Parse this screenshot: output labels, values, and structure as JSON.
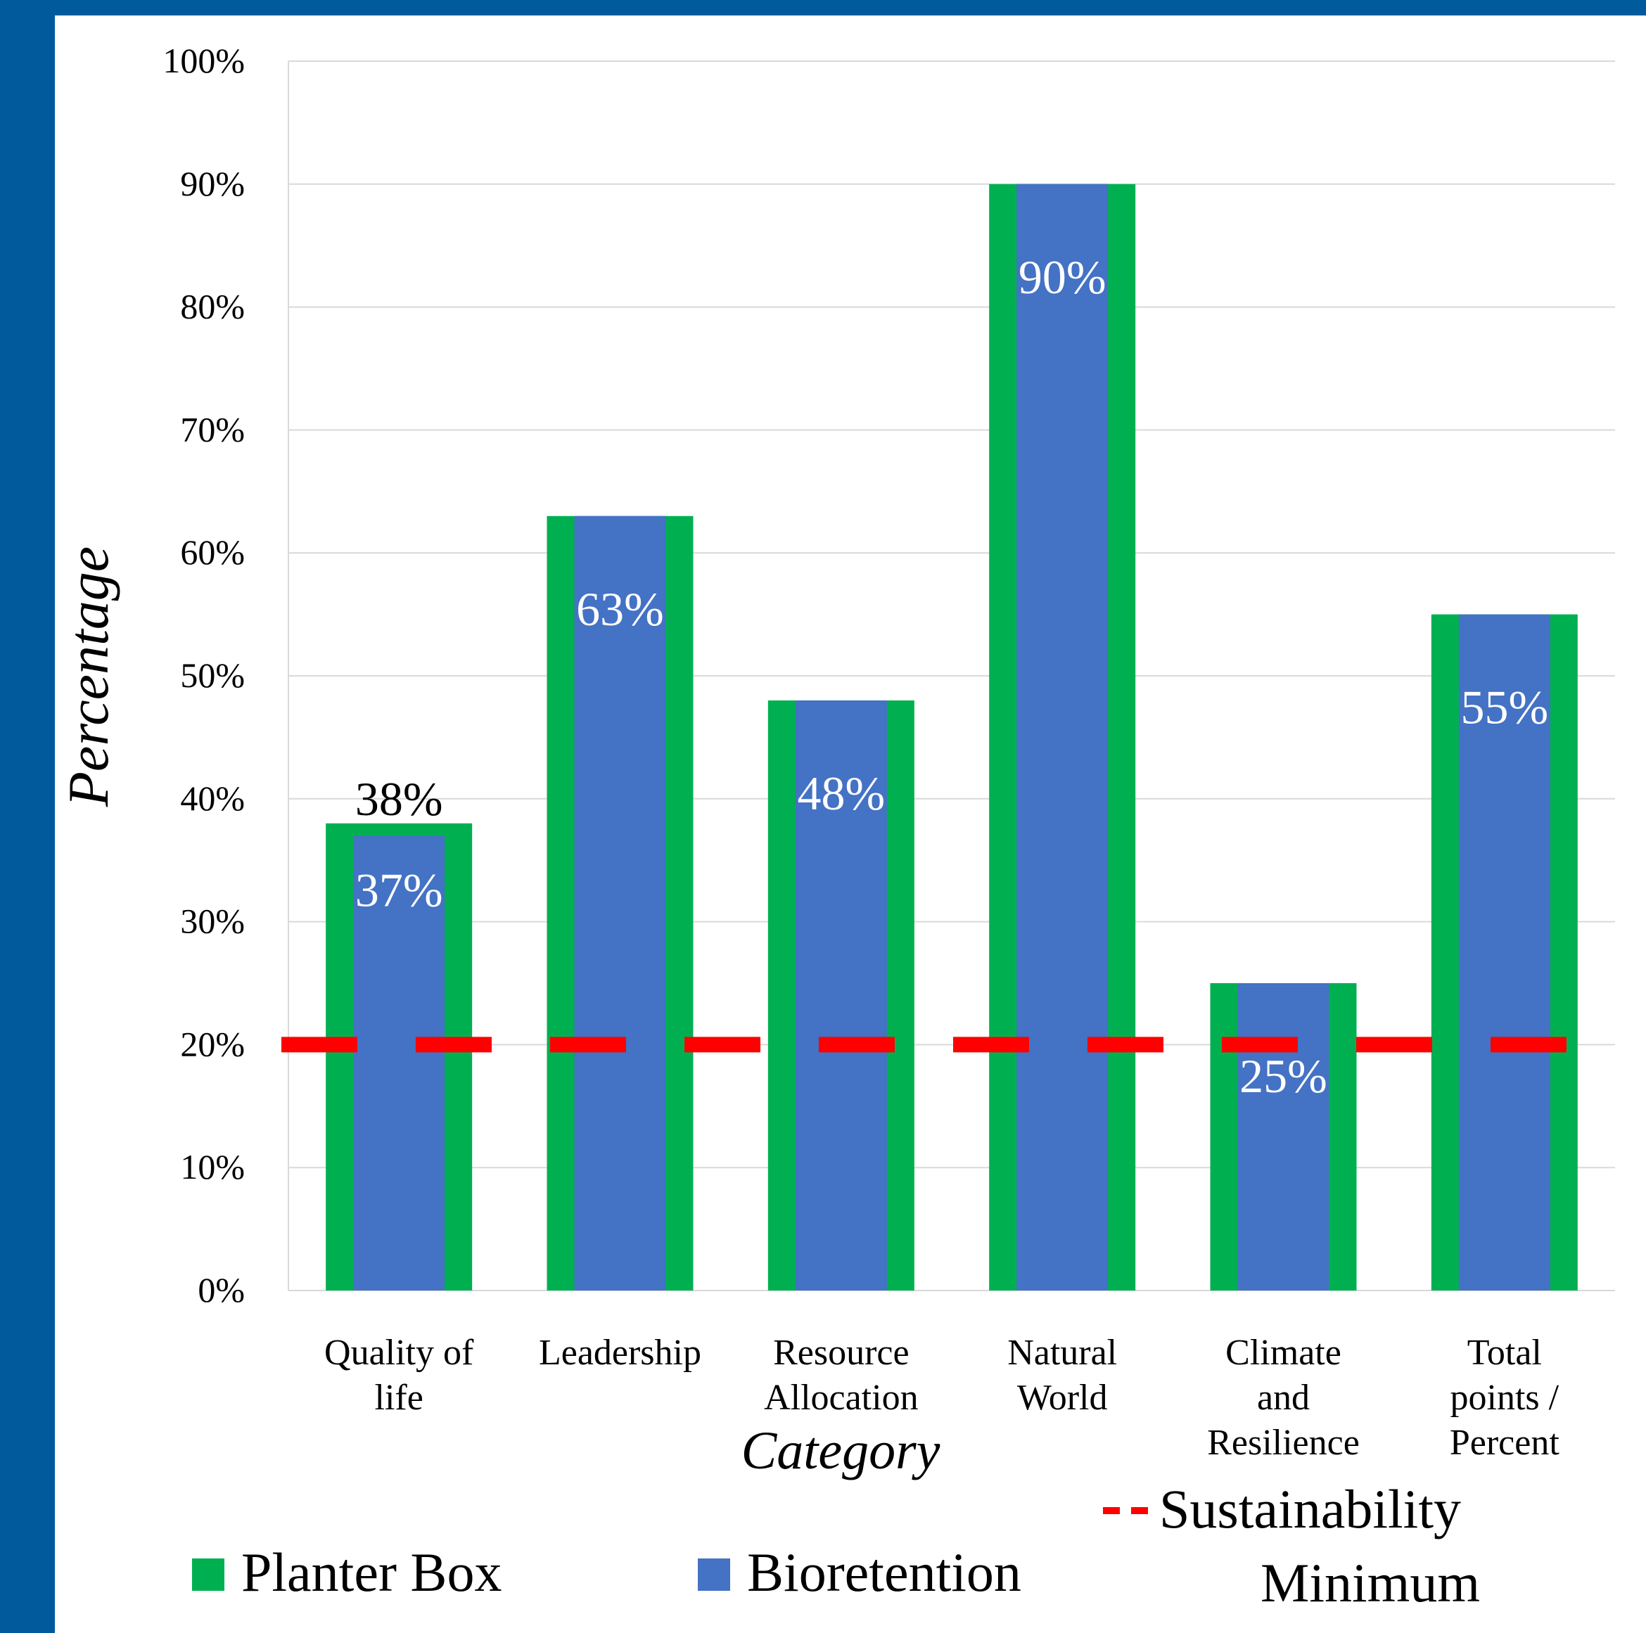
{
  "chart_data": {
    "type": "bar",
    "title": "",
    "xlabel": "Category",
    "ylabel": "Percentage",
    "ylim": [
      0,
      100
    ],
    "yticks": [
      "0%",
      "10%",
      "20%",
      "30%",
      "40%",
      "50%",
      "60%",
      "70%",
      "80%",
      "90%",
      "100%"
    ],
    "grid": true,
    "legend_position": "bottom",
    "categories": [
      [
        "Quality of",
        "life"
      ],
      [
        "Leadership"
      ],
      [
        "Resource",
        "Allocation"
      ],
      [
        "Natural",
        "World"
      ],
      [
        "Climate",
        "and",
        "Resilience"
      ],
      [
        "Total",
        "points /",
        "Percent"
      ]
    ],
    "series": [
      {
        "name": "Planter Box",
        "color": "#00b050",
        "values": [
          38,
          63,
          48,
          90,
          25,
          55
        ]
      },
      {
        "name": "Bioretention",
        "color": "#4472c4",
        "values": [
          37,
          63,
          48,
          90,
          25,
          55
        ]
      }
    ],
    "data_labels": [
      {
        "category_index": 0,
        "series": "Planter Box",
        "text": "38%"
      },
      {
        "category_index": 0,
        "series": "Bioretention",
        "text": "37%"
      },
      {
        "category_index": 1,
        "series": "Bioretention",
        "text": "63%"
      },
      {
        "category_index": 2,
        "series": "Bioretention",
        "text": "48%"
      },
      {
        "category_index": 3,
        "series": "Bioretention",
        "text": "90%"
      },
      {
        "category_index": 4,
        "series": "Bioretention",
        "text": "25%"
      },
      {
        "category_index": 5,
        "series": "Bioretention",
        "text": "55%"
      }
    ],
    "reference_line": {
      "name": "Sustainability Minimum",
      "name_lines": [
        "Sustainability",
        "Minimum"
      ],
      "value": 20,
      "color": "#ff0000",
      "style": "dashed"
    }
  }
}
